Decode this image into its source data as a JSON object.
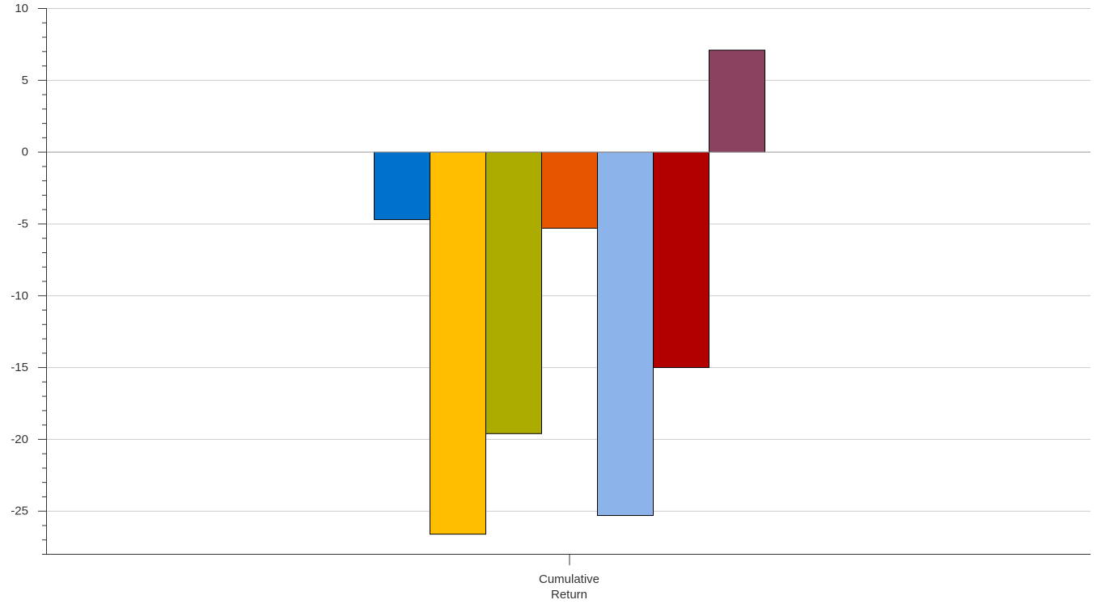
{
  "chart_data": {
    "type": "bar",
    "categories": [
      "Cumulative Return"
    ],
    "category_label_lines": [
      "Cumulative",
      "Return"
    ],
    "series": [
      {
        "values": [
          -4.7
        ],
        "color": "#0072CE"
      },
      {
        "values": [
          -26.6
        ],
        "color": "#FFBF00"
      },
      {
        "values": [
          -19.6
        ],
        "color": "#ABAB00"
      },
      {
        "values": [
          -5.3
        ],
        "color": "#E85500"
      },
      {
        "values": [
          -25.3
        ],
        "color": "#8DB4EA"
      },
      {
        "values": [
          -15.0
        ],
        "color": "#B20000"
      },
      {
        "values": [
          7.1
        ],
        "color": "#8B4260"
      }
    ],
    "yticks": [
      10,
      5,
      0,
      -5,
      -10,
      -15,
      -20,
      -25
    ],
    "ylim": [
      -28,
      10
    ],
    "minor_tick_step": 1,
    "grid": true,
    "title": "",
    "xlabel": "",
    "ylabel": ""
  }
}
